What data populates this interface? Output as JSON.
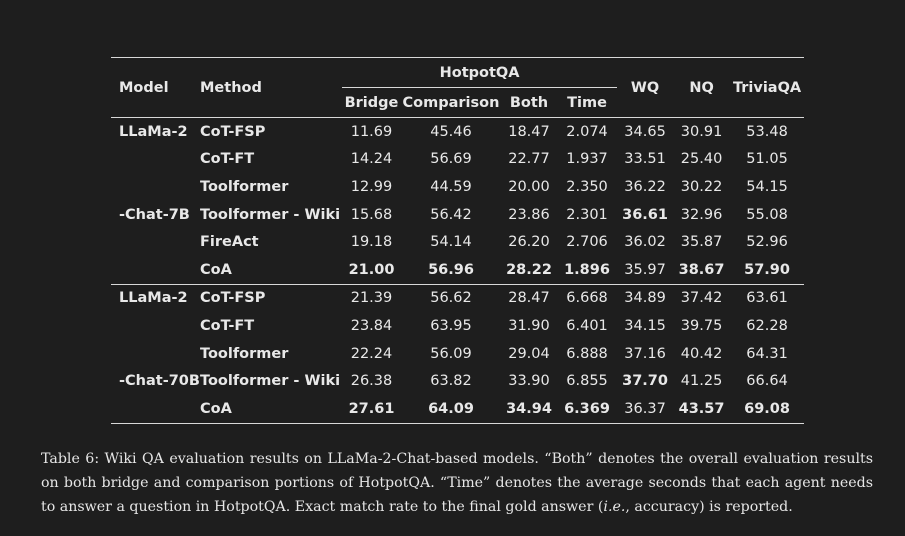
{
  "table": {
    "headers": {
      "model": "Model",
      "method": "Method",
      "hotpot_group": "HotpotQA",
      "hotpot_sub": [
        "Bridge",
        "Comparison",
        "Both",
        "Time"
      ],
      "wq": "WQ",
      "nq": "NQ",
      "triviaqa": "TriviaQA"
    },
    "groups": [
      {
        "model_line1": "LLaMa-2",
        "model_line2": "-Chat-7B",
        "rows": [
          {
            "method": "CoT-FSP",
            "values": [
              "11.69",
              "45.46",
              "18.47",
              "2.074",
              "34.65",
              "30.91",
              "53.48"
            ],
            "bold": []
          },
          {
            "method": "CoT-FT",
            "values": [
              "14.24",
              "56.69",
              "22.77",
              "1.937",
              "33.51",
              "25.40",
              "51.05"
            ],
            "bold": []
          },
          {
            "method": "Toolformer",
            "values": [
              "12.99",
              "44.59",
              "20.00",
              "2.350",
              "36.22",
              "30.22",
              "54.15"
            ],
            "bold": []
          },
          {
            "method": "Toolformer - Wiki",
            "values": [
              "15.68",
              "56.42",
              "23.86",
              "2.301",
              "36.61",
              "32.96",
              "55.08"
            ],
            "bold": [
              4
            ]
          },
          {
            "method": "FireAct",
            "values": [
              "19.18",
              "54.14",
              "26.20",
              "2.706",
              "36.02",
              "35.87",
              "52.96"
            ],
            "bold": []
          },
          {
            "method": "CoA",
            "values": [
              "21.00",
              "56.96",
              "28.22",
              "1.896",
              "35.97",
              "38.67",
              "57.90"
            ],
            "bold": [
              0,
              1,
              2,
              3,
              5,
              6
            ]
          }
        ]
      },
      {
        "model_line1": "LLaMa-2",
        "model_line2": "-Chat-70B",
        "rows": [
          {
            "method": "CoT-FSP",
            "values": [
              "21.39",
              "56.62",
              "28.47",
              "6.668",
              "34.89",
              "37.42",
              "63.61"
            ],
            "bold": []
          },
          {
            "method": "CoT-FT",
            "values": [
              "23.84",
              "63.95",
              "31.90",
              "6.401",
              "34.15",
              "39.75",
              "62.28"
            ],
            "bold": []
          },
          {
            "method": "Toolformer",
            "values": [
              "22.24",
              "56.09",
              "29.04",
              "6.888",
              "37.16",
              "40.42",
              "64.31"
            ],
            "bold": []
          },
          {
            "method": "Toolformer - Wiki",
            "values": [
              "26.38",
              "63.82",
              "33.90",
              "6.855",
              "37.70",
              "41.25",
              "66.64"
            ],
            "bold": [
              4
            ]
          },
          {
            "method": "CoA",
            "values": [
              "27.61",
              "64.09",
              "34.94",
              "6.369",
              "36.37",
              "43.57",
              "69.08"
            ],
            "bold": [
              0,
              1,
              2,
              3,
              5,
              6
            ]
          }
        ]
      }
    ]
  },
  "caption": {
    "part1": "Table 6: Wiki QA evaluation results on LLaMa-2-Chat-based models. “Both” denotes the overall evaluation results on both bridge and comparison portions of HotpotQA. “Time” denotes the average seconds that each agent needs to answer a question in HotpotQA. Exact match rate to the final gold answer (",
    "ie": "i.e.",
    "part2": ", accuracy) is reported."
  }
}
